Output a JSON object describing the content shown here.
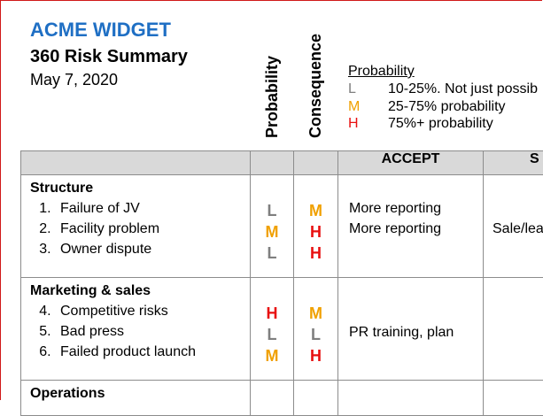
{
  "header": {
    "company": "ACME WIDGET",
    "title": "360 Risk Summary",
    "date": "May 7, 2020"
  },
  "columns": {
    "probability": "Probability",
    "consequence": "Consequence",
    "accept": "ACCEPT",
    "next_partial": "S"
  },
  "legend": {
    "title": "Probability",
    "rows": [
      {
        "code": "L",
        "text": "10-25%. Not just possib"
      },
      {
        "code": "M",
        "text": "25-75% probability"
      },
      {
        "code": "H",
        "text": "75%+ probability"
      }
    ]
  },
  "sections": [
    {
      "title": "Structure",
      "items": [
        {
          "num": "1.",
          "text": "Failure of JV",
          "prob": "L",
          "cons": "M",
          "accept": "More reporting",
          "next": ""
        },
        {
          "num": "2.",
          "text": "Facility problem",
          "prob": "M",
          "cons": "H",
          "accept": "More reporting",
          "next": "Sale/lea"
        },
        {
          "num": "3.",
          "text": "Owner dispute",
          "prob": "L",
          "cons": "H",
          "accept": "",
          "next": ""
        }
      ]
    },
    {
      "title": "Marketing & sales",
      "items": [
        {
          "num": "4.",
          "text": "Competitive risks",
          "prob": "H",
          "cons": "M",
          "accept": "",
          "next": ""
        },
        {
          "num": "5.",
          "text": "Bad press",
          "prob": "L",
          "cons": "L",
          "accept": "PR training, plan",
          "next": ""
        },
        {
          "num": "6.",
          "text": "Failed product launch",
          "prob": "M",
          "cons": "H",
          "accept": "",
          "next": ""
        }
      ]
    },
    {
      "title": "Operations",
      "items": []
    }
  ]
}
